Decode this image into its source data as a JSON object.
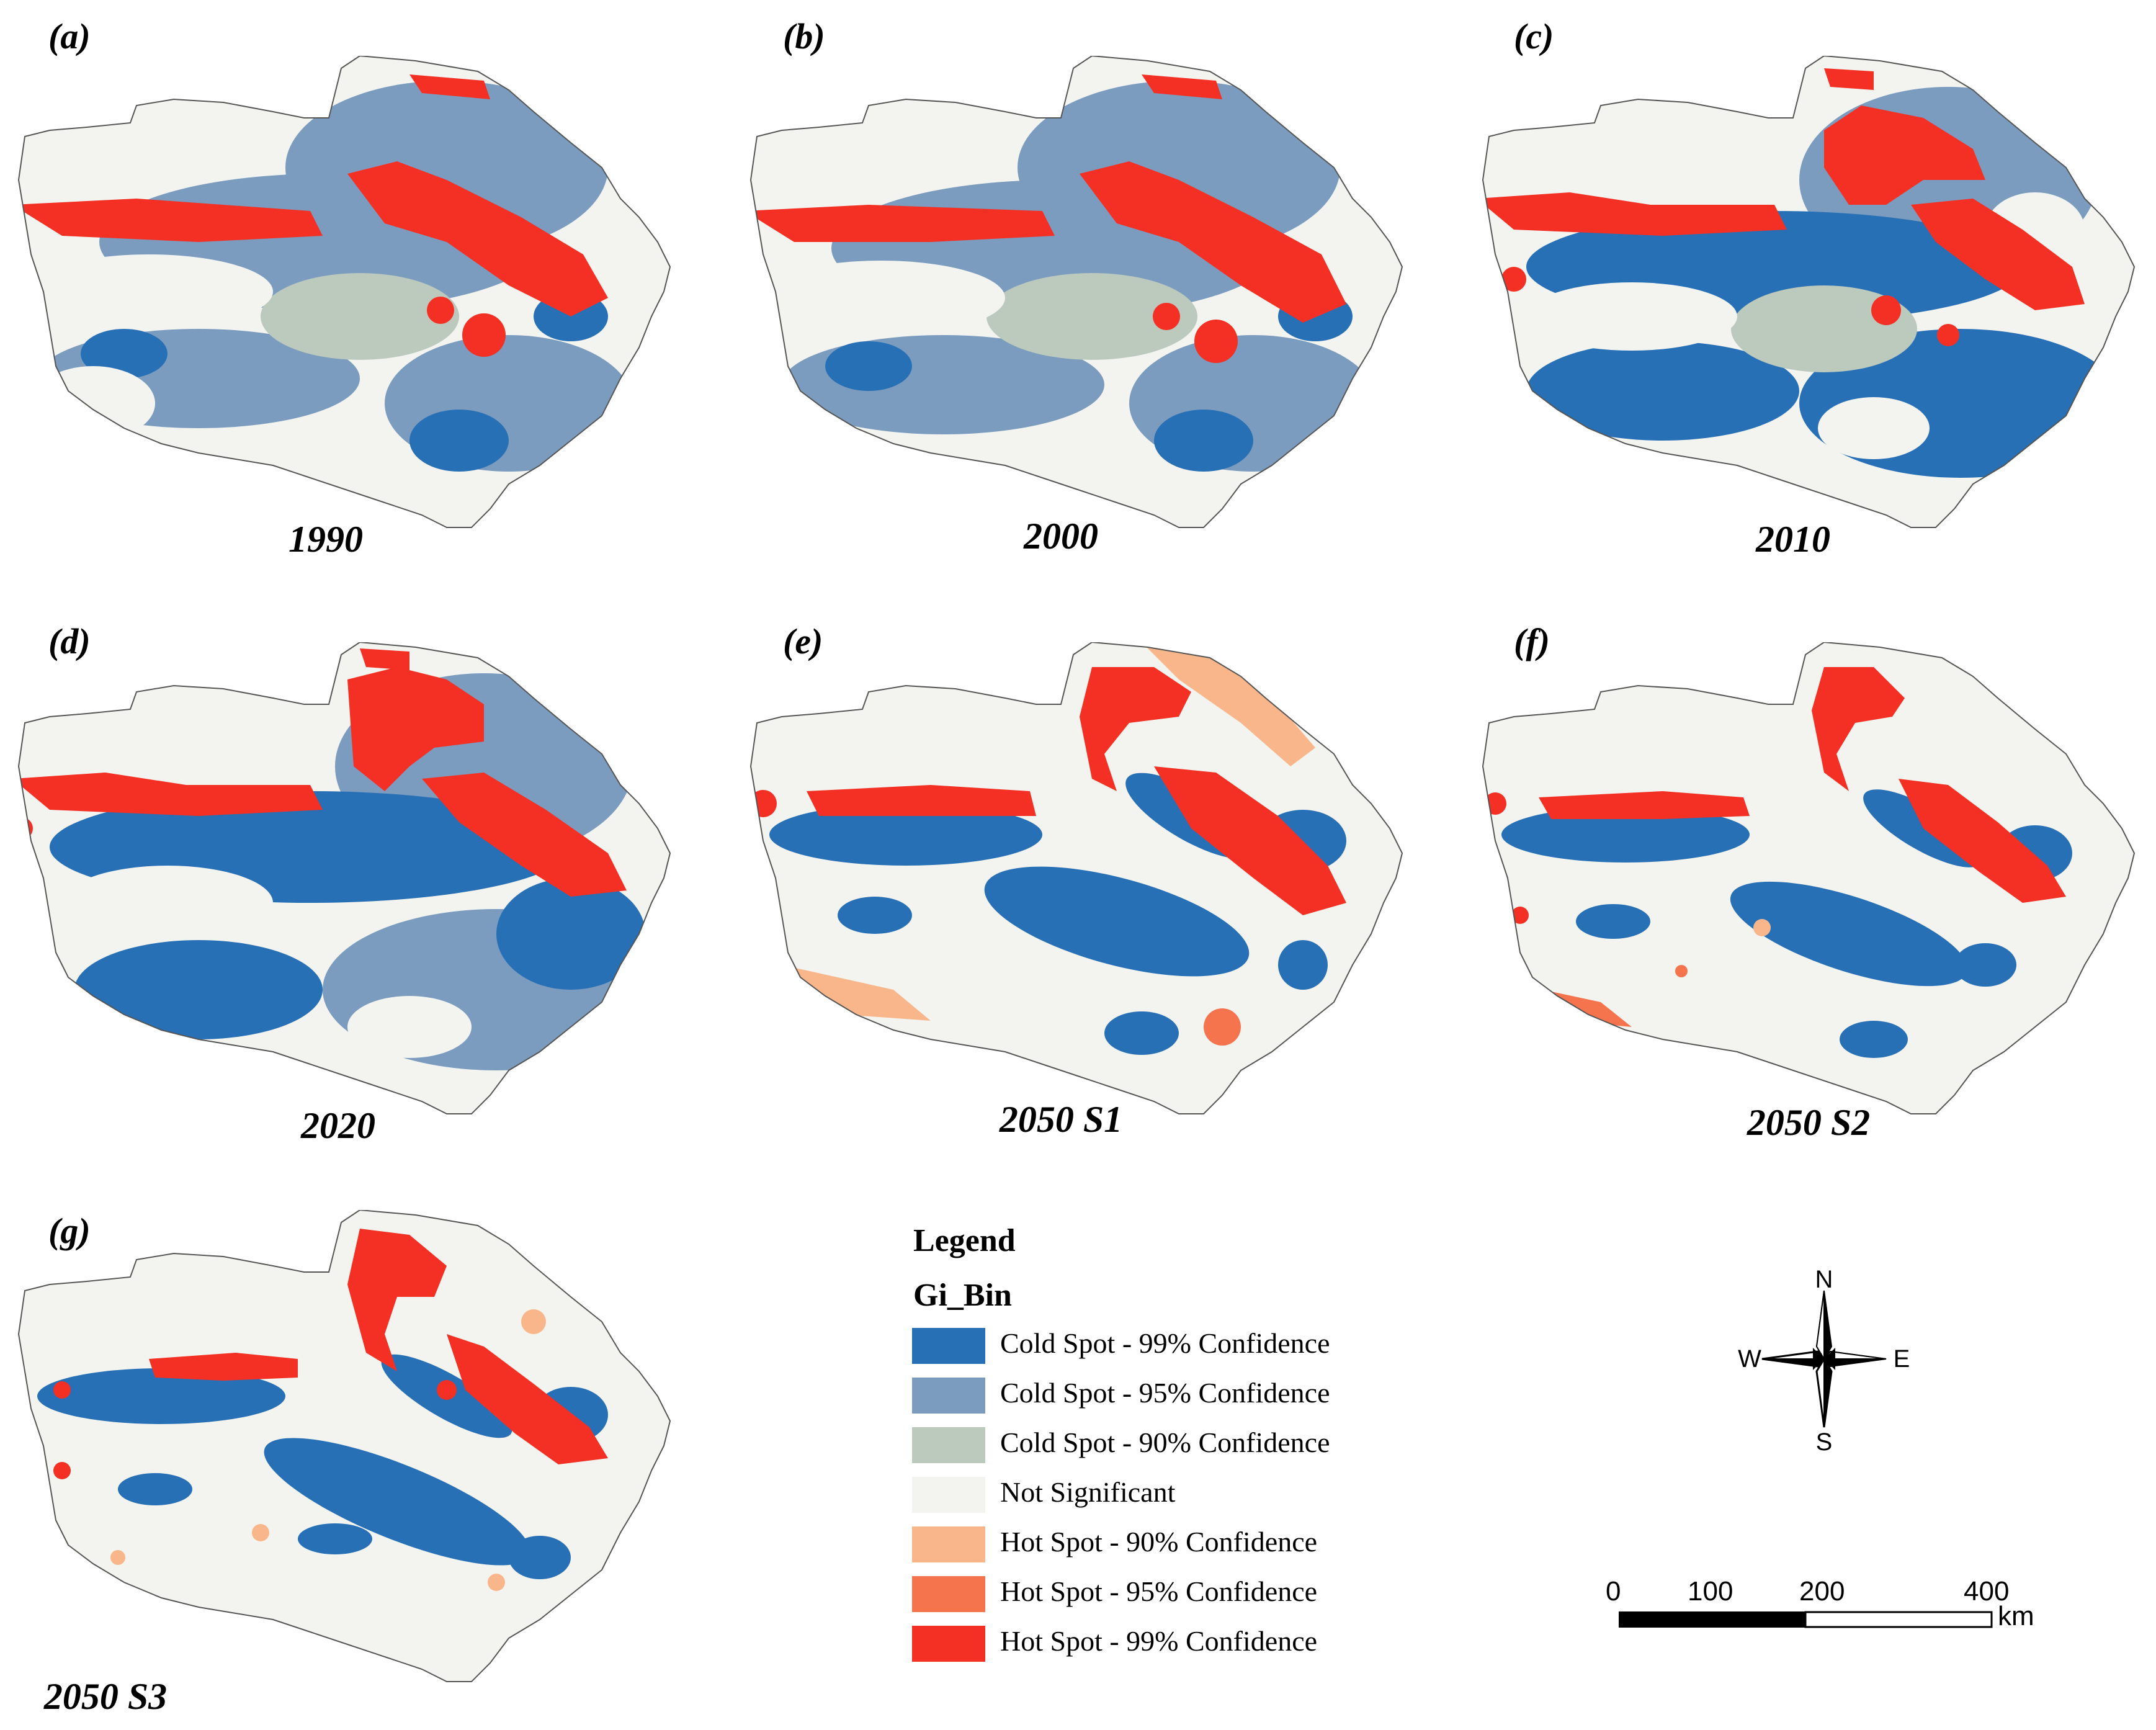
{
  "colors": {
    "cold99": "#2870b6",
    "cold95": "#7b9cbf",
    "cold90": "#bcc9bd",
    "not_significant": "#f3f4f0",
    "hot90": "#f8b68a",
    "hot95": "#f5744e",
    "hot99": "#f42f23",
    "outline": "#555555"
  },
  "panels": [
    {
      "label": "(a)",
      "year": "1990"
    },
    {
      "label": "(b)",
      "year": "2000"
    },
    {
      "label": "(c)",
      "year": "2010"
    },
    {
      "label": "(d)",
      "year": "2020"
    },
    {
      "label": "(e)",
      "year": "2050 S1"
    },
    {
      "label": "(f)",
      "year": "2050 S2"
    },
    {
      "label": "(g)",
      "year": "2050 S3"
    }
  ],
  "legend": {
    "title": "Legend",
    "field": "Gi_Bin",
    "items": [
      {
        "label": "Cold Spot - 99% Confidence",
        "color": "#2870b6"
      },
      {
        "label": "Cold Spot - 95% Confidence",
        "color": "#7b9cbf"
      },
      {
        "label": "Cold Spot - 90% Confidence",
        "color": "#bcc9bd"
      },
      {
        "label": "Not Significant",
        "color": "#f3f4f0"
      },
      {
        "label": "Hot Spot - 90% Confidence",
        "color": "#f8b68a"
      },
      {
        "label": "Hot Spot - 95% Confidence",
        "color": "#f5744e"
      },
      {
        "label": "Hot Spot - 99% Confidence",
        "color": "#f42f23"
      }
    ]
  },
  "compass": {
    "n": "N",
    "s": "S",
    "e": "E",
    "w": "W"
  },
  "scale_bar": {
    "ticks": [
      "0",
      "100",
      "200",
      "400"
    ],
    "unit": "km"
  }
}
